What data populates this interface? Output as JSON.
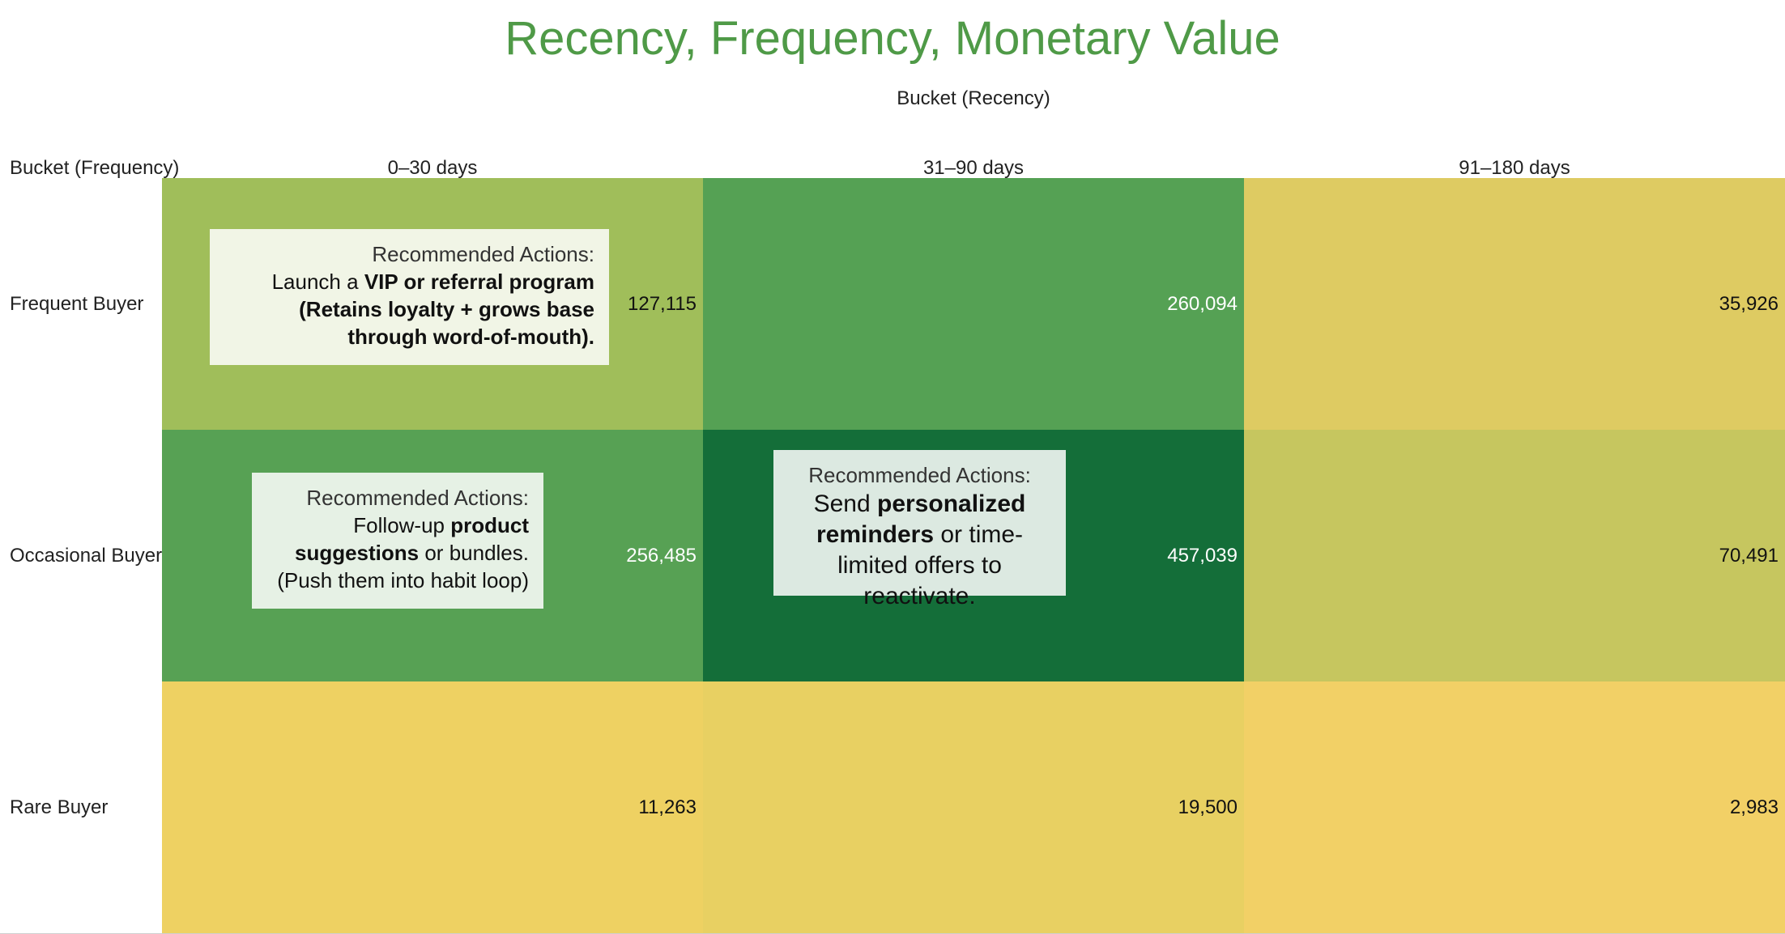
{
  "chart_data": {
    "type": "heatmap",
    "title": "Recency, Frequency, Monetary Value",
    "x_axis_title": "Bucket (Recency)",
    "y_axis_title": "Bucket (Frequency)",
    "columns": [
      "0–30 days",
      "31–90 days",
      "91–180 days"
    ],
    "rows": [
      "Frequent Buyer",
      "Occasional Buyer",
      "Rare Buyer"
    ],
    "values": [
      [
        127115,
        260094,
        35926
      ],
      [
        256485,
        457039,
        70491
      ],
      [
        11263,
        19500,
        2983
      ]
    ],
    "value_labels": [
      [
        "127,115",
        "260,094",
        "35,926"
      ],
      [
        "256,485",
        "457,039",
        "70,491"
      ],
      [
        "11,263",
        "19,500",
        "2,983"
      ]
    ],
    "cell_colors": [
      [
        "#a0be5a",
        "#55a154",
        "#decb62"
      ],
      [
        "#57a154",
        "#146e39",
        "#c6c65f"
      ],
      [
        "#eed162",
        "#e8d062",
        "#f2d066"
      ]
    ],
    "cell_text_colors": [
      [
        "#111111",
        "#ffffff",
        "#111111"
      ],
      [
        "#ffffff",
        "#ffffff",
        "#111111"
      ],
      [
        "#111111",
        "#111111",
        "#111111"
      ]
    ],
    "title_color": "#4f9a47",
    "annotations": [
      {
        "row": 0,
        "col": 0,
        "heading": "Recommended Actions:",
        "parts": [
          {
            "text": "Launch a ",
            "bold": false
          },
          {
            "text": "VIP or referral program",
            "bold": true
          },
          {
            "text": " (Retains loyalty + grows base through word-of-mouth).",
            "bold": true
          }
        ]
      },
      {
        "row": 1,
        "col": 0,
        "heading": "Recommended Actions:",
        "parts": [
          {
            "text": "Follow-up ",
            "bold": false
          },
          {
            "text": "product suggestions",
            "bold": true
          },
          {
            "text": " or bundles. (Push them into habit loop)",
            "bold": false
          }
        ]
      },
      {
        "row": 1,
        "col": 1,
        "heading": "Recommended Actions:",
        "parts": [
          {
            "text": "Send ",
            "bold": false
          },
          {
            "text": "personalized reminders",
            "bold": true
          },
          {
            "text": " or time-limited offers to reactivate.",
            "bold": false
          }
        ]
      }
    ]
  }
}
